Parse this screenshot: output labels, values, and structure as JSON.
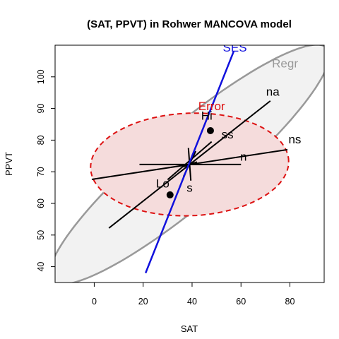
{
  "chart_data": {
    "type": "scatter",
    "title": "(SAT, PPVT) in Rohwer MANCOVA model",
    "xlabel": "SAT",
    "ylabel": "PPVT",
    "xlim": [
      -16,
      94
    ],
    "ylim": [
      35,
      110
    ],
    "xticks": [
      0,
      20,
      40,
      60,
      80
    ],
    "yticks": [
      40,
      50,
      60,
      70,
      80,
      90,
      100
    ],
    "grid": false,
    "center": {
      "x": 39,
      "y": 72.3
    },
    "points": [
      {
        "label": "Hi",
        "x": 47.5,
        "y": 83
      },
      {
        "label": "Lo",
        "x": 31,
        "y": 62.7
      }
    ],
    "ellipses": [
      {
        "name": "Regr",
        "color": "#999999",
        "fill": "#f2f2f2",
        "dashed": false,
        "center": [
          39,
          72.3
        ],
        "semi_major": 67.3,
        "semi_minor": 13.3,
        "rotation_deg": 32.5
      },
      {
        "name": "Error",
        "color": "#dd1111",
        "fill": "#f5dcdc",
        "dashed": true,
        "center": [
          39,
          72.3
        ],
        "semi_major": 40.5,
        "semi_minor": 16.2,
        "rotation_deg": 1.5
      }
    ],
    "effect_lines": [
      {
        "label": "na",
        "from": [
          6,
          52.2
        ],
        "to": [
          72,
          92.4
        ]
      },
      {
        "label": "ns",
        "from": [
          -1,
          67.6
        ],
        "to": [
          79,
          77
        ]
      },
      {
        "label": "ss",
        "from": [
          30,
          67.5
        ],
        "to": [
          48,
          79.5
        ]
      },
      {
        "label": "s",
        "from": [
          36.5,
          68.5
        ],
        "to": [
          41.5,
          76.5
        ]
      },
      {
        "label": "n",
        "from": [
          18.5,
          72.3
        ],
        "to": [
          60,
          72.3
        ]
      }
    ],
    "cross": [
      {
        "from": [
          38.5,
          77.5
        ],
        "to": [
          39.5,
          67.2
        ]
      },
      {
        "from": [
          36,
          71.5
        ],
        "to": [
          42,
          73.1
        ]
      }
    ],
    "ses_line": {
      "label": "SES",
      "color": "#1010dd",
      "from": [
        21,
        38
      ],
      "to": [
        57,
        108
      ]
    },
    "text_labels": [
      {
        "text": "na",
        "x": 73,
        "y": 94,
        "anchor": "middle"
      },
      {
        "text": "ns",
        "x": 82,
        "y": 79,
        "anchor": "middle"
      },
      {
        "text": "ss",
        "x": 54.5,
        "y": 80.5,
        "anchor": "middle"
      },
      {
        "text": "n",
        "x": 61,
        "y": 73.5,
        "anchor": "middle"
      },
      {
        "text": "s",
        "x": 39,
        "y": 63.7,
        "anchor": "middle"
      },
      {
        "text": "Hi",
        "x": 46,
        "y": 86.5,
        "anchor": "middle"
      },
      {
        "text": "Lo",
        "x": 28,
        "y": 65,
        "anchor": "middle"
      }
    ],
    "ellipse_labels": [
      {
        "text": "Regr",
        "x": 78,
        "y": 103,
        "color": "#999999"
      },
      {
        "text": "Error",
        "x": 48,
        "y": 89.5,
        "color": "#dd1111"
      },
      {
        "text": "SES",
        "x": 57.5,
        "y": 108,
        "color": "#1010dd"
      }
    ]
  }
}
